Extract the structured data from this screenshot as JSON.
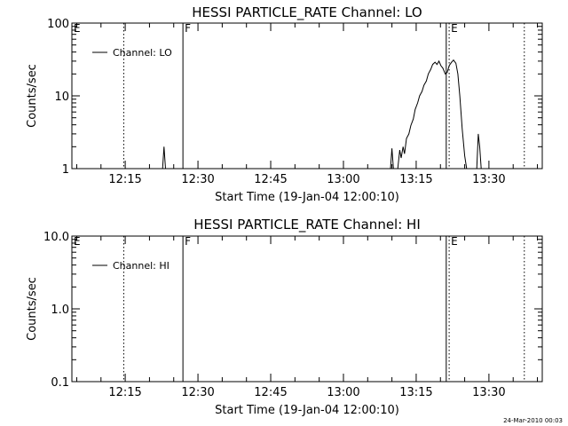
{
  "footer": {
    "timestamp": "24-Mar-2010 00:03"
  },
  "chart_data": [
    {
      "type": "line",
      "title": "HESSI PARTICLE_RATE Channel: LO",
      "xlabel": "Start Time (19-Jan-04 12:00:10)",
      "ylabel": "Counts/sec",
      "yscale": "log",
      "ylim": [
        1,
        100
      ],
      "ytick_values": [
        1,
        10,
        100
      ],
      "ytick_labels": [
        "1",
        "10",
        "100"
      ],
      "xlim_minutes": [
        0,
        39
      ],
      "xtick_values": [
        15,
        30,
        45,
        60,
        75,
        90
      ],
      "xtick_labels": [
        "12:15",
        "12:30",
        "12:45",
        "13:00",
        "13:15",
        "13:30"
      ],
      "legend": {
        "position": "top-left",
        "entries": [
          "Channel: LO"
        ]
      },
      "flags": [
        {
          "label": "E",
          "x": 0,
          "style": "none"
        },
        {
          "label": "",
          "x": 14.7,
          "style": "dotted"
        },
        {
          "label": "F",
          "x": 26.9,
          "style": "solid"
        },
        {
          "label": "",
          "x": 81.2,
          "style": "solid"
        },
        {
          "label": "E",
          "x": 81.8,
          "style": "dotted"
        },
        {
          "label": "",
          "x": 97.3,
          "style": "dotted"
        }
      ],
      "series": [
        {
          "name": "Channel: LO",
          "segments": [
            [
              [
                22.7,
                1.0
              ],
              [
                23.0,
                2.0
              ],
              [
                23.3,
                1.0
              ]
            ],
            [
              [
                69.7,
                1.0
              ],
              [
                70.0,
                1.9
              ],
              [
                70.3,
                1.0
              ]
            ],
            [
              [
                71.2,
                1.0
              ],
              [
                71.6,
                1.8
              ],
              [
                71.9,
                1.4
              ],
              [
                72.3,
                2.0
              ],
              [
                72.6,
                1.6
              ],
              [
                73.0,
                2.6
              ],
              [
                73.5,
                3.0
              ],
              [
                73.9,
                3.9
              ],
              [
                74.4,
                4.8
              ],
              [
                74.8,
                6.5
              ],
              [
                75.3,
                8.0
              ],
              [
                75.7,
                10.0
              ],
              [
                76.2,
                11.5
              ],
              [
                76.6,
                14.0
              ],
              [
                77.1,
                16.0
              ],
              [
                77.5,
                20.0
              ],
              [
                78.0,
                23.0
              ],
              [
                78.4,
                27.0
              ],
              [
                78.9,
                29.0
              ],
              [
                79.3,
                27.0
              ],
              [
                79.7,
                30.0
              ],
              [
                80.1,
                26.0
              ],
              [
                80.5,
                24.0
              ],
              [
                81.0,
                20.0
              ],
              [
                81.4,
                21.0
              ],
              [
                81.8,
                26.0
              ],
              [
                82.3,
                29.0
              ],
              [
                82.7,
                31.0
              ],
              [
                83.2,
                28.0
              ],
              [
                83.6,
                20.0
              ],
              [
                84.0,
                10.0
              ],
              [
                84.5,
                3.5
              ],
              [
                85.0,
                1.5
              ],
              [
                85.4,
                1.0
              ]
            ],
            [
              [
                87.5,
                1.0
              ],
              [
                87.8,
                3.0
              ],
              [
                88.1,
                2.0
              ],
              [
                88.4,
                1.0
              ]
            ]
          ]
        }
      ]
    },
    {
      "type": "line",
      "title": "HESSI PARTICLE_RATE Channel: HI",
      "xlabel": "Start Time (19-Jan-04 12:00:10)",
      "ylabel": "Counts/sec",
      "yscale": "log",
      "ylim": [
        0.1,
        10
      ],
      "ytick_values": [
        0.1,
        1,
        10
      ],
      "ytick_labels": [
        "0.1",
        "1.0",
        "10.0"
      ],
      "xlim_minutes": [
        0,
        39
      ],
      "xtick_values": [
        15,
        30,
        45,
        60,
        75,
        90
      ],
      "xtick_labels": [
        "12:15",
        "12:30",
        "12:45",
        "13:00",
        "13:15",
        "13:30"
      ],
      "legend": {
        "position": "top-left",
        "entries": [
          "Channel: HI"
        ]
      },
      "flags": [
        {
          "label": "E",
          "x": 0,
          "style": "none"
        },
        {
          "label": "",
          "x": 14.7,
          "style": "dotted"
        },
        {
          "label": "F",
          "x": 26.9,
          "style": "solid"
        },
        {
          "label": "",
          "x": 81.2,
          "style": "solid"
        },
        {
          "label": "E",
          "x": 81.8,
          "style": "dotted"
        },
        {
          "label": "",
          "x": 97.3,
          "style": "dotted"
        }
      ],
      "series": [
        {
          "name": "Channel: HI",
          "segments": []
        }
      ]
    }
  ]
}
